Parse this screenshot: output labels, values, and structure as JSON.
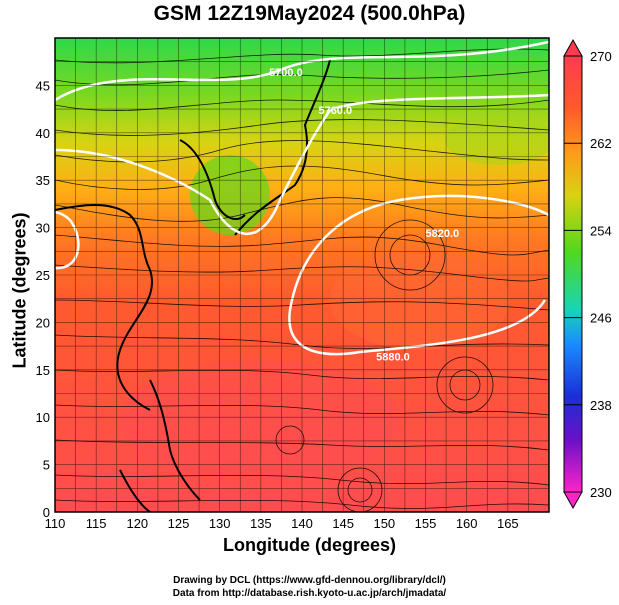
{
  "title": "GSM 12Z19May2024 (500.0hPa)",
  "xlabel": "Longitude (degrees)",
  "ylabel": "Latitude (degrees)",
  "credit_line1": "Drawing by DCL (https://www.gfd-dennou.org/library/dcl/)",
  "credit_line2": "Data from http://database.rish.kyoto-u.ac.jp/arch/jmadata/",
  "map": {
    "lon_range": [
      110,
      170
    ],
    "lat_range": [
      0,
      50
    ],
    "x_ticks": [
      "110",
      "115",
      "120",
      "125",
      "130",
      "135",
      "140",
      "145",
      "150",
      "155",
      "160",
      "165"
    ],
    "y_ticks": [
      "0",
      "5",
      "10",
      "15",
      "20",
      "25",
      "30",
      "35",
      "40",
      "45"
    ],
    "contour_labels": [
      "5700.0",
      "5760.0",
      "5820.0",
      "5880.0"
    ]
  },
  "colorbar": {
    "min": 230,
    "max": 270,
    "tick_labels": [
      "270",
      "262",
      "254",
      "246",
      "238",
      "230"
    ],
    "colors": [
      "#ff3b4f",
      "#ff5a2a",
      "#ff9a1a",
      "#d9d210",
      "#4fd81e",
      "#18d6b4",
      "#1a8cff",
      "#1a2fd6",
      "#6a10c8",
      "#ff24c8"
    ]
  }
}
